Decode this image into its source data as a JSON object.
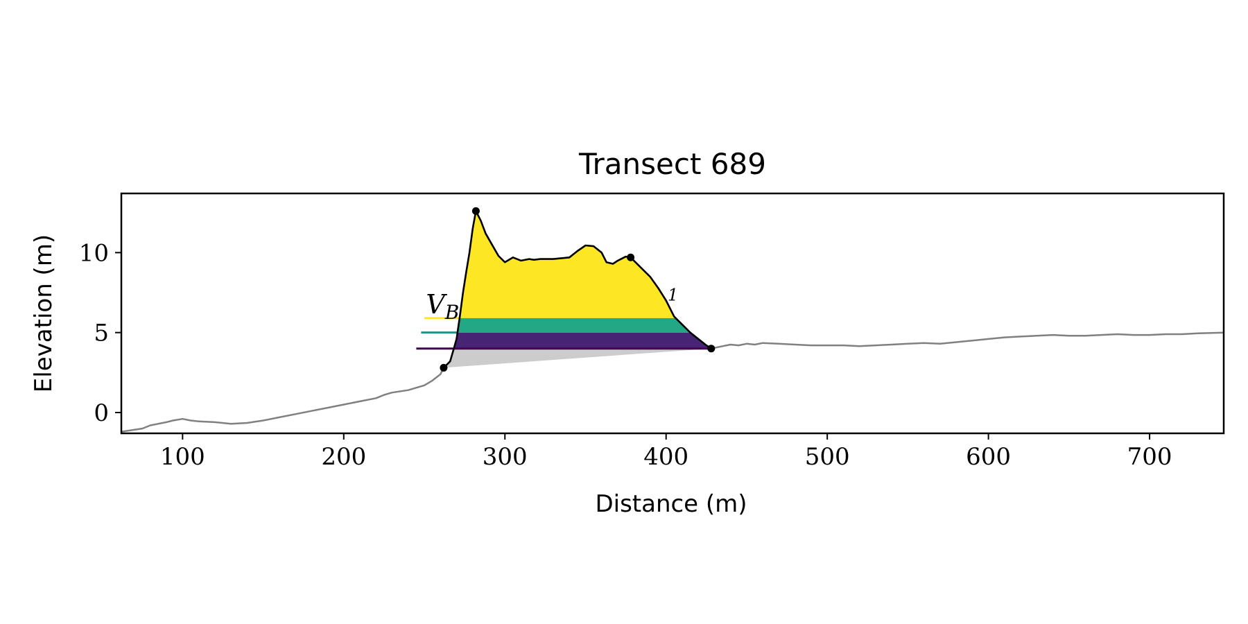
{
  "chart_data": {
    "type": "line",
    "title": "Transect 689",
    "xlabel": "Distance (m)",
    "ylabel": "Elevation (m)",
    "xlim": [
      62,
      746
    ],
    "ylim": [
      -1.3,
      13.7
    ],
    "xticks": [
      100,
      200,
      300,
      400,
      500,
      600,
      700
    ],
    "yticks": [
      0,
      5,
      10
    ],
    "grid": false,
    "legend": "none",
    "colors": {
      "profile_gray": "#808080",
      "baseline_fill": "#cccccc",
      "level_1_yellow": "#fde725",
      "level_2_green": "#21918c",
      "level_2_fill": "#22a884",
      "level_3_purple": "#440154",
      "level_3_fill": "#482475",
      "outline": "#000000"
    },
    "series": [
      {
        "role": "full-profile",
        "x": [
          62,
          75,
          80,
          85,
          90,
          94,
          100,
          105,
          110,
          120,
          130,
          140,
          150,
          160,
          170,
          180,
          190,
          200,
          210,
          220,
          225,
          230,
          240,
          250,
          255,
          260,
          262
        ],
        "y": [
          -1.2,
          -1.0,
          -0.8,
          -0.7,
          -0.6,
          -0.5,
          -0.4,
          -0.5,
          -0.55,
          -0.6,
          -0.7,
          -0.65,
          -0.5,
          -0.3,
          -0.1,
          0.1,
          0.3,
          0.5,
          0.7,
          0.9,
          1.1,
          1.25,
          1.4,
          1.7,
          2.0,
          2.4,
          2.8
        ]
      },
      {
        "role": "landward-profile",
        "x": [
          428,
          435,
          440,
          445,
          450,
          455,
          460,
          470,
          480,
          490,
          500,
          510,
          520,
          530,
          540,
          550,
          560,
          570,
          580,
          590,
          600,
          610,
          620,
          630,
          640,
          650,
          660,
          670,
          680,
          690,
          700,
          710,
          720,
          730,
          746
        ],
        "y": [
          4.0,
          4.15,
          4.25,
          4.2,
          4.3,
          4.25,
          4.35,
          4.3,
          4.25,
          4.2,
          4.2,
          4.2,
          4.15,
          4.2,
          4.25,
          4.3,
          4.35,
          4.3,
          4.4,
          4.5,
          4.6,
          4.7,
          4.75,
          4.8,
          4.85,
          4.8,
          4.8,
          4.85,
          4.9,
          4.85,
          4.85,
          4.9,
          4.9,
          4.95,
          5.0
        ]
      },
      {
        "role": "dune-outline",
        "x": [
          262,
          266,
          268,
          270,
          272,
          274,
          276,
          278,
          280,
          282,
          285,
          288,
          292,
          296,
          300,
          305,
          310,
          315,
          318,
          322,
          330,
          335,
          340,
          345,
          350,
          355,
          360,
          363,
          367,
          370,
          375,
          378,
          385,
          390,
          395,
          400,
          405,
          410,
          415,
          420,
          425,
          428
        ],
        "y": [
          2.8,
          3.2,
          3.9,
          4.6,
          6.0,
          7.5,
          8.8,
          10.0,
          11.5,
          12.6,
          12.0,
          11.2,
          10.5,
          9.8,
          9.4,
          9.7,
          9.5,
          9.6,
          9.55,
          9.6,
          9.6,
          9.65,
          9.7,
          10.1,
          10.45,
          10.4,
          10.0,
          9.4,
          9.3,
          9.5,
          9.75,
          9.7,
          9.0,
          8.5,
          7.8,
          7.0,
          6.0,
          5.5,
          5.0,
          4.6,
          4.2,
          4.0
        ]
      }
    ],
    "key_points": {
      "x": [
        262,
        282,
        378,
        428
      ],
      "y": [
        2.8,
        12.6,
        9.7,
        4.0
      ]
    },
    "levels": [
      {
        "name": "level_1",
        "elevation": 5.9,
        "line_start_x": 250
      },
      {
        "name": "level_2",
        "elevation": 5.0,
        "line_start_x": 248
      },
      {
        "name": "level_3",
        "elevation": 4.0,
        "line_start_x": 245
      }
    ],
    "annotations": [
      {
        "text": "V",
        "subscript": "B",
        "x": 251,
        "y": 6.2
      },
      {
        "text": "1",
        "x": 401,
        "y": 7.0
      }
    ]
  }
}
